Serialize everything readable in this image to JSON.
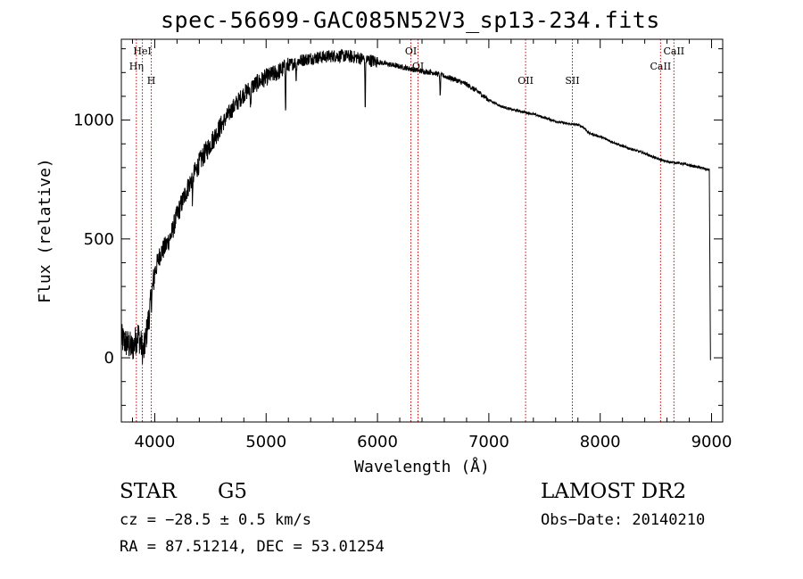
{
  "header": {
    "title": "spec-56699-GAC085N52V3_sp13-234.fits"
  },
  "info": {
    "object_type": "STAR",
    "spectral_class": "G5",
    "survey": "LAMOST DR2",
    "cz": "cz = −28.5 ± 0.5 km/s",
    "obs_date": "Obs−Date: 20140210",
    "radec": "RA =  87.51214, DEC =  53.01254"
  },
  "chart_data": {
    "type": "line",
    "title": "spec-56699-GAC085N52V3_sp13-234.fits",
    "xlabel": "Wavelength (Å)",
    "ylabel": "Flux (relative)",
    "xlim": [
      3700,
      9100
    ],
    "ylim": [
      -270,
      1340
    ],
    "x_ticks": [
      4000,
      5000,
      6000,
      7000,
      8000,
      9000
    ],
    "y_ticks": [
      0,
      500,
      1000
    ],
    "series": [
      {
        "name": "flux",
        "x": [
          3700,
          3750,
          3800,
          3850,
          3900,
          3950,
          4000,
          4050,
          4100,
          4150,
          4200,
          4300,
          4400,
          4500,
          4600,
          4700,
          4800,
          4900,
          5000,
          5100,
          5200,
          5300,
          5400,
          5500,
          5600,
          5700,
          5800,
          5900,
          6000,
          6100,
          6200,
          6300,
          6400,
          6500,
          6600,
          6700,
          6800,
          6900,
          7000,
          7100,
          7200,
          7300,
          7400,
          7500,
          7600,
          7700,
          7800,
          7850,
          7900,
          8000,
          8100,
          8200,
          8300,
          8400,
          8500,
          8600,
          8700,
          8800,
          8900,
          8980,
          8990
        ],
        "y": [
          80,
          60,
          40,
          100,
          20,
          180,
          360,
          440,
          470,
          520,
          600,
          720,
          820,
          900,
          980,
          1050,
          1110,
          1150,
          1180,
          1200,
          1230,
          1250,
          1260,
          1265,
          1270,
          1270,
          1265,
          1255,
          1245,
          1235,
          1225,
          1215,
          1205,
          1200,
          1185,
          1170,
          1150,
          1120,
          1085,
          1060,
          1045,
          1035,
          1025,
          1010,
          995,
          985,
          980,
          970,
          945,
          930,
          910,
          890,
          875,
          860,
          840,
          825,
          820,
          810,
          800,
          790,
          -10
        ]
      }
    ],
    "absorption_features": [
      {
        "x": 5890,
        "depth": 230
      },
      {
        "x": 5175,
        "depth": 180
      },
      {
        "x": 6563,
        "depth": 110
      },
      {
        "x": 4340,
        "depth": 120
      },
      {
        "x": 4861,
        "depth": 90
      },
      {
        "x": 5270,
        "depth": 80
      }
    ],
    "line_markers": [
      {
        "label": "HeI",
        "wavelength": 3889,
        "row": "upper"
      },
      {
        "label": "Hη",
        "wavelength": 3835,
        "row": "middle"
      },
      {
        "label": "H",
        "wavelength": 3969,
        "row": "lower"
      },
      {
        "label": "OI",
        "wavelength": 6300,
        "row": "upper"
      },
      {
        "label": "OI",
        "wavelength": 6364,
        "row": "middle"
      },
      {
        "label": "OII",
        "wavelength": 7330,
        "row": "lower"
      },
      {
        "label": "SII",
        "wavelength": 7750,
        "row": "lower"
      },
      {
        "label": "CaII",
        "wavelength": 8662,
        "row": "upper"
      },
      {
        "label": "CaII",
        "wavelength": 8542,
        "row": "middle"
      }
    ],
    "marker_color": "#cc0000",
    "line_color": "#000000"
  }
}
